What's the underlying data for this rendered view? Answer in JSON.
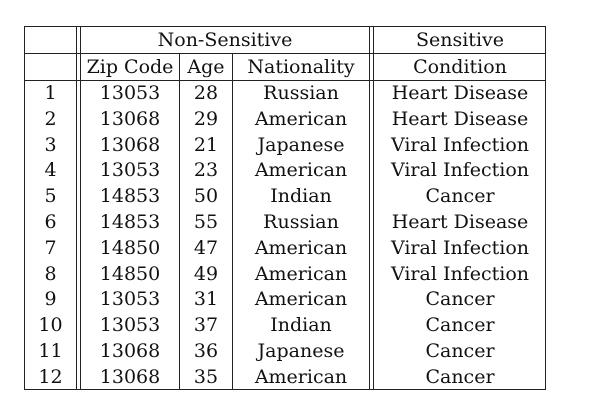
{
  "table": {
    "group_headers": {
      "non_sensitive": "Non-Sensitive",
      "sensitive": "Sensitive"
    },
    "column_headers": {
      "zip": "Zip Code",
      "age": "Age",
      "nationality": "Nationality",
      "condition": "Condition"
    },
    "rows": [
      {
        "id": "1",
        "zip": "13053",
        "age": "28",
        "nationality": "Russian",
        "condition": "Heart Disease"
      },
      {
        "id": "2",
        "zip": "13068",
        "age": "29",
        "nationality": "American",
        "condition": "Heart Disease"
      },
      {
        "id": "3",
        "zip": "13068",
        "age": "21",
        "nationality": "Japanese",
        "condition": "Viral Infection"
      },
      {
        "id": "4",
        "zip": "13053",
        "age": "23",
        "nationality": "American",
        "condition": "Viral Infection"
      },
      {
        "id": "5",
        "zip": "14853",
        "age": "50",
        "nationality": "Indian",
        "condition": "Cancer"
      },
      {
        "id": "6",
        "zip": "14853",
        "age": "55",
        "nationality": "Russian",
        "condition": "Heart Disease"
      },
      {
        "id": "7",
        "zip": "14850",
        "age": "47",
        "nationality": "American",
        "condition": "Viral Infection"
      },
      {
        "id": "8",
        "zip": "14850",
        "age": "49",
        "nationality": "American",
        "condition": "Viral Infection"
      },
      {
        "id": "9",
        "zip": "13053",
        "age": "31",
        "nationality": "American",
        "condition": "Cancer"
      },
      {
        "id": "10",
        "zip": "13053",
        "age": "37",
        "nationality": "Indian",
        "condition": "Cancer"
      },
      {
        "id": "11",
        "zip": "13068",
        "age": "36",
        "nationality": "Japanese",
        "condition": "Cancer"
      },
      {
        "id": "12",
        "zip": "13068",
        "age": "35",
        "nationality": "American",
        "condition": "Cancer"
      }
    ]
  }
}
